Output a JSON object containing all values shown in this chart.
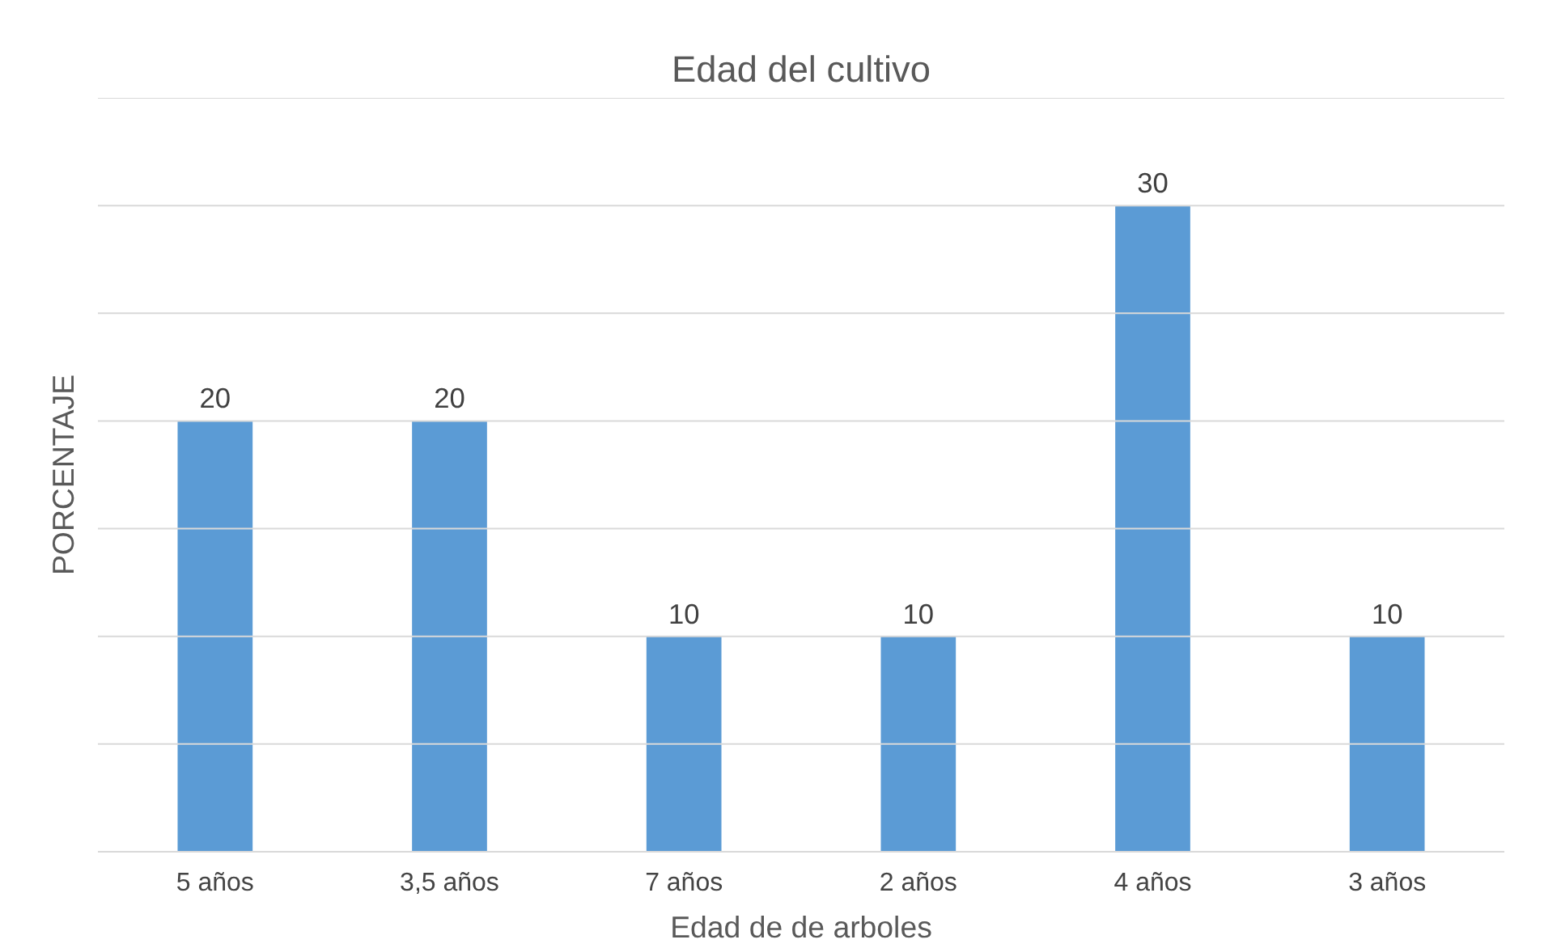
{
  "chart_data": {
    "type": "bar",
    "title": "Edad del cultivo",
    "xlabel": "Edad de de arboles",
    "ylabel": "PORCENTAJE",
    "categories": [
      "5 años",
      "3,5 años",
      "7 años",
      "2 años",
      "4 años",
      "3 años"
    ],
    "values": [
      20,
      20,
      10,
      10,
      30,
      10
    ],
    "color": "#5b9bd5",
    "ylim": [
      0,
      35
    ],
    "yticks": [
      {
        "value": 0,
        "label": null
      },
      {
        "value": 5,
        "label": null
      },
      {
        "value": 10,
        "label": null
      },
      {
        "value": 15,
        "label": null
      },
      {
        "value": 20,
        "label": null
      },
      {
        "value": 25,
        "label": null
      },
      {
        "value": 30,
        "label": null
      },
      {
        "value": 35,
        "label": null
      }
    ],
    "grid": "y",
    "tick_labels": "x",
    "data_labels": true
  }
}
